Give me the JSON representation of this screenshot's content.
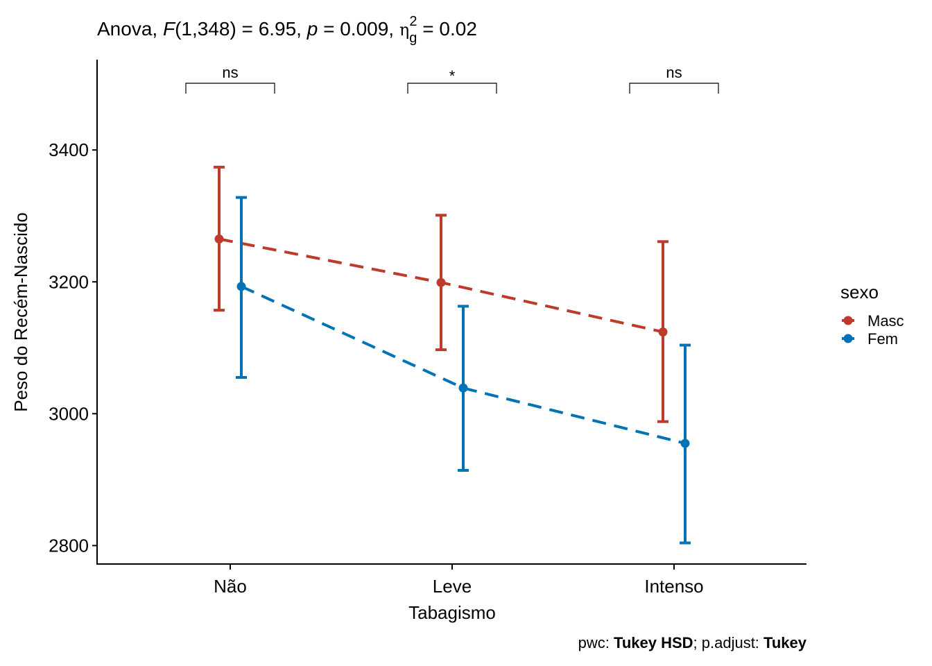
{
  "chart_data": {
    "type": "line",
    "title": {
      "prefix": "Anova, ",
      "f_label": "F",
      "f_args": "(1,348) = 6.95, ",
      "p_label": "p",
      "p_value": " = 0.009, ",
      "eta": "η",
      "eta_sub": "g",
      "eta_sup": "2",
      "eta_value": " = 0.02"
    },
    "xlabel": "Tabagismo",
    "ylabel": "Peso do Recém-Nascido",
    "categories": [
      "Não",
      "Leve",
      "Intenso"
    ],
    "ylim": [
      2772,
      3537
    ],
    "yticks": [
      2800,
      3000,
      3200,
      3400
    ],
    "grid": false,
    "legend": {
      "title": "sexo",
      "position": "right"
    },
    "series": [
      {
        "name": "Masc",
        "color": "#BE3A2A",
        "linestyle": "dashed",
        "values": [
          3265,
          3199,
          3124
        ],
        "lower": [
          3157,
          3097,
          2988
        ],
        "upper": [
          3374,
          3301,
          3261
        ]
      },
      {
        "name": "Fem",
        "color": "#0073B7",
        "linestyle": "dashed",
        "values": [
          3193,
          3039,
          2955
        ],
        "lower": [
          3055,
          2914,
          2804
        ],
        "upper": [
          3328,
          3163,
          3104
        ]
      }
    ],
    "annotations": [
      {
        "category": "Não",
        "label": "ns"
      },
      {
        "category": "Leve",
        "label": "*"
      },
      {
        "category": "Intenso",
        "label": "ns"
      }
    ],
    "caption": {
      "p1": "pwc: ",
      "b1": "Tukey HSD",
      "p2": "; p.adjust: ",
      "b2": "Tukey"
    }
  }
}
